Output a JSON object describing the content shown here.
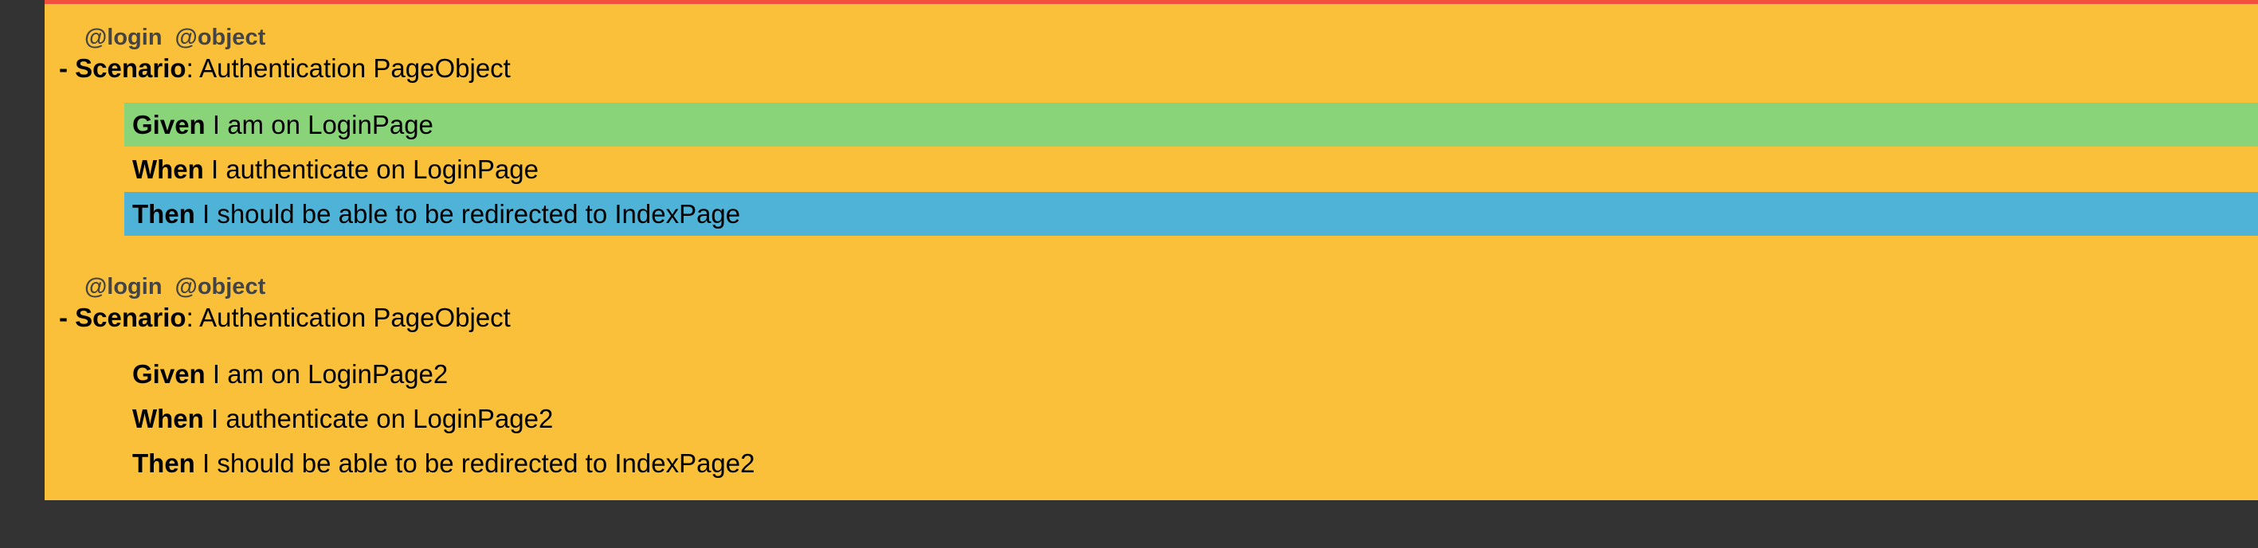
{
  "colors": {
    "background": "#333333",
    "scenario_background": "#fbc03a",
    "top_border": "#f2503c",
    "passed_step": "#89d479",
    "skipped_step": "#4fb3d8"
  },
  "scenarios": [
    {
      "tags": [
        "@login",
        "@object"
      ],
      "prefix": "- Scenario",
      "name": ": Authentication PageObject",
      "steps": [
        {
          "keyword": "Given",
          "text": " I am on LoginPage",
          "status": "passed"
        },
        {
          "keyword": "When",
          "text": " I authenticate on LoginPage",
          "status": "pending"
        },
        {
          "keyword": "Then",
          "text": " I should be able to be redirected to IndexPage",
          "status": "skipped"
        }
      ]
    },
    {
      "tags": [
        "@login",
        "@object"
      ],
      "prefix": "- Scenario",
      "name": ": Authentication PageObject",
      "steps": [
        {
          "keyword": "Given",
          "text": " I am on LoginPage2",
          "status": "pending"
        },
        {
          "keyword": "When",
          "text": " I authenticate on LoginPage2",
          "status": "pending"
        },
        {
          "keyword": "Then",
          "text": " I should be able to be redirected to IndexPage2",
          "status": "pending"
        }
      ]
    }
  ]
}
